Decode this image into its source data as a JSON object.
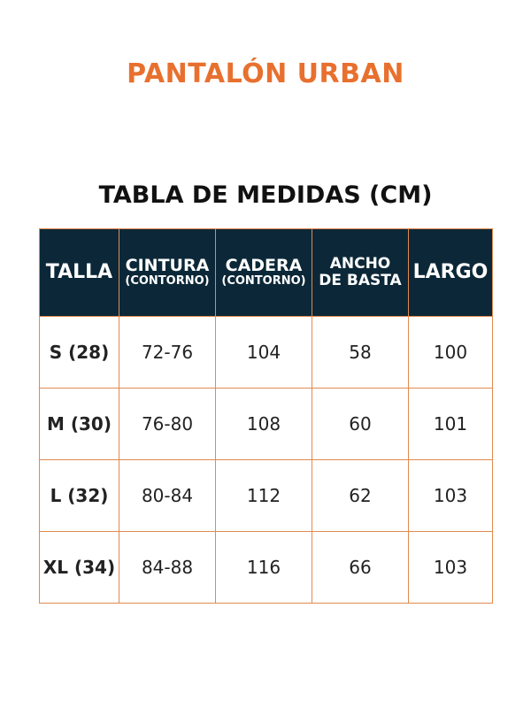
{
  "title": "PANTALÓN URBAN",
  "subtitle": "TABLA DE MEDIDAS (CM)",
  "colors": {
    "accent": "#e8702e",
    "header_bg": "#0c2838",
    "border": "#e08a50"
  },
  "table": {
    "headers": [
      {
        "main": "TALLA",
        "sub": ""
      },
      {
        "main": "CINTURA",
        "sub": "(CONTORNO)"
      },
      {
        "main": "CADERA",
        "sub": "(CONTORNO)"
      },
      {
        "main": "ANCHO",
        "sub": "DE BASTA"
      },
      {
        "main": "LARGO",
        "sub": ""
      }
    ],
    "rows": [
      [
        "S (28)",
        "72-76",
        "104",
        "58",
        "100"
      ],
      [
        "M (30)",
        "76-80",
        "108",
        "60",
        "101"
      ],
      [
        "L (32)",
        "80-84",
        "112",
        "62",
        "103"
      ],
      [
        "XL (34)",
        "84-88",
        "116",
        "66",
        "103"
      ]
    ]
  }
}
